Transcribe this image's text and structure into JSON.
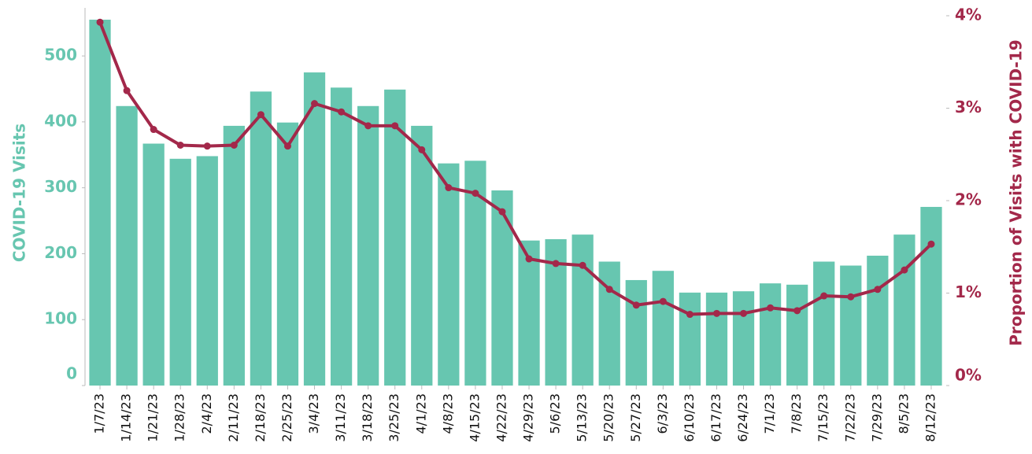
{
  "chart_data": {
    "type": "combo",
    "categories": [
      "1/7/23",
      "1/14/23",
      "1/21/23",
      "1/28/23",
      "2/4/23",
      "2/11/23",
      "2/18/23",
      "2/25/23",
      "3/4/23",
      "3/11/23",
      "3/18/23",
      "3/25/23",
      "4/1/23",
      "4/8/23",
      "4/15/23",
      "4/22/23",
      "4/29/23",
      "5/6/23",
      "5/13/23",
      "5/20/23",
      "5/27/23",
      "6/3/23",
      "6/10/23",
      "6/17/23",
      "6/24/23",
      "7/1/23",
      "7/8/23",
      "7/15/23",
      "7/22/23",
      "7/29/23",
      "8/5/23",
      "8/12/23"
    ],
    "series": [
      {
        "name": "COVID-19 Visits",
        "type": "bar",
        "axis": "y",
        "color": "#67c6b0",
        "values": [
          555,
          424,
          367,
          344,
          348,
          394,
          446,
          399,
          475,
          452,
          424,
          449,
          394,
          337,
          341,
          296,
          220,
          222,
          229,
          188,
          160,
          174,
          141,
          141,
          143,
          155,
          153,
          188,
          182,
          197,
          229,
          271
        ]
      },
      {
        "name": "Proportion of Visits with COVID-19",
        "type": "line",
        "axis": "y2",
        "color": "#a3284a",
        "values": [
          3.93,
          3.19,
          2.77,
          2.6,
          2.59,
          2.6,
          2.93,
          2.59,
          3.05,
          2.96,
          2.81,
          2.81,
          2.55,
          2.14,
          2.08,
          1.88,
          1.37,
          1.32,
          1.3,
          1.04,
          0.87,
          0.91,
          0.77,
          0.78,
          0.78,
          0.84,
          0.81,
          0.97,
          0.96,
          1.04,
          1.25,
          1.53
        ]
      }
    ],
    "ylabel": "COVID-19 Visits",
    "y2label": "Proportion of Visits with COVID-19",
    "ylim": [
      0,
      561
    ],
    "yticks": [
      0,
      100,
      200,
      300,
      400,
      500
    ],
    "y2lim": [
      0,
      4
    ],
    "y2ticks": [
      {
        "value": 0,
        "label": "0%"
      },
      {
        "value": 1,
        "label": "1%"
      },
      {
        "value": 2,
        "label": "2%"
      },
      {
        "value": 3,
        "label": "3%"
      },
      {
        "value": 4,
        "label": "4%"
      }
    ],
    "grid": false
  }
}
